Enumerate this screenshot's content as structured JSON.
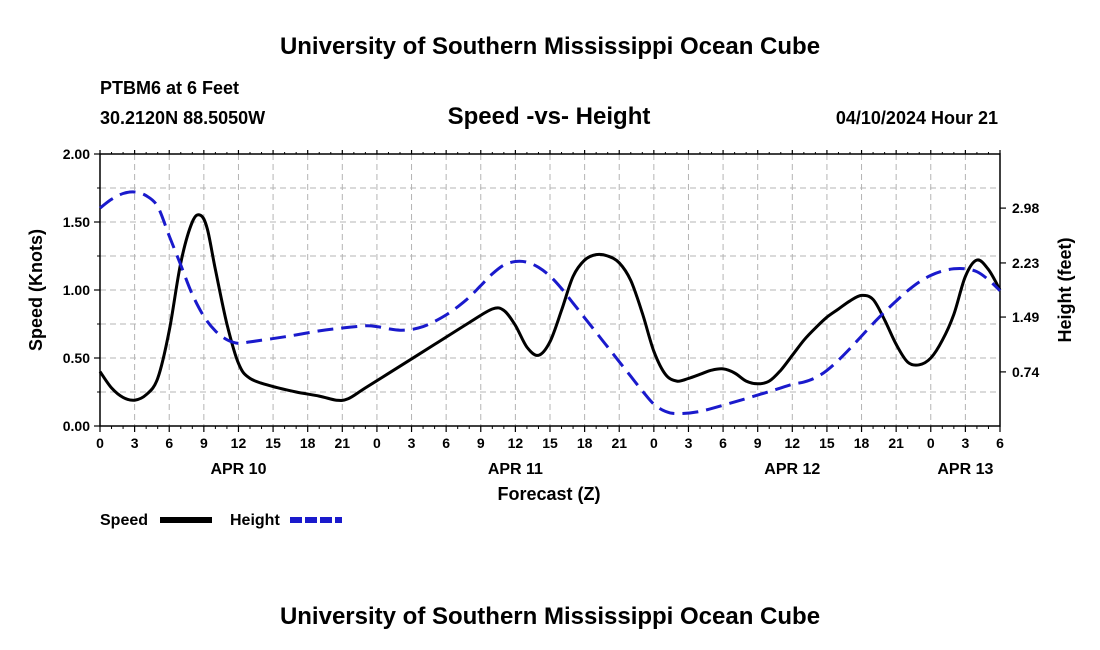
{
  "header": {
    "title": "University of Southern Mississippi Ocean Cube",
    "station": "PTBM6 at 6 Feet",
    "coords": "30.2120N  88.5050W",
    "chart_subtitle": "Speed -vs- Height",
    "datetime": "04/10/2024 Hour 21"
  },
  "footer": {
    "title": "University of Southern Mississippi Ocean Cube"
  },
  "legend": {
    "speed_label": "Speed",
    "height_label": "Height",
    "speed_color": "#000000",
    "height_color": "#1a1acc"
  },
  "chart_data": {
    "type": "line",
    "title": "Speed -vs- Height",
    "xlabel": "Forecast (Z)",
    "ylabel": "Speed (Knots)",
    "y2label": "Height (feet)",
    "x_unit": "hours since APR 10 00Z",
    "xlim": [
      0,
      78
    ],
    "ylim": [
      0,
      2.0
    ],
    "y2lim": [
      0,
      3.72
    ],
    "x_ticks": [
      {
        "x": 0,
        "label": "0"
      },
      {
        "x": 3,
        "label": "3"
      },
      {
        "x": 6,
        "label": "6"
      },
      {
        "x": 9,
        "label": "9"
      },
      {
        "x": 12,
        "label": "12"
      },
      {
        "x": 15,
        "label": "15"
      },
      {
        "x": 18,
        "label": "18"
      },
      {
        "x": 21,
        "label": "21"
      },
      {
        "x": 24,
        "label": "0"
      },
      {
        "x": 27,
        "label": "3"
      },
      {
        "x": 30,
        "label": "6"
      },
      {
        "x": 33,
        "label": "9"
      },
      {
        "x": 36,
        "label": "12"
      },
      {
        "x": 39,
        "label": "15"
      },
      {
        "x": 42,
        "label": "18"
      },
      {
        "x": 45,
        "label": "21"
      },
      {
        "x": 48,
        "label": "0"
      },
      {
        "x": 51,
        "label": "3"
      },
      {
        "x": 54,
        "label": "6"
      },
      {
        "x": 57,
        "label": "9"
      },
      {
        "x": 60,
        "label": "12"
      },
      {
        "x": 63,
        "label": "15"
      },
      {
        "x": 66,
        "label": "18"
      },
      {
        "x": 69,
        "label": "21"
      },
      {
        "x": 72,
        "label": "0"
      },
      {
        "x": 75,
        "label": "3"
      },
      {
        "x": 78,
        "label": "6"
      }
    ],
    "y_ticks": [
      {
        "y": 0.0,
        "label": "0.00"
      },
      {
        "y": 0.5,
        "label": "0.50"
      },
      {
        "y": 1.0,
        "label": "1.00"
      },
      {
        "y": 1.5,
        "label": "1.50"
      },
      {
        "y": 2.0,
        "label": "2.00"
      }
    ],
    "y2_ticks": [
      {
        "y": 0.74,
        "label": "0.74"
      },
      {
        "y": 1.49,
        "label": "1.49"
      },
      {
        "y": 2.23,
        "label": "2.23"
      },
      {
        "y": 2.98,
        "label": "2.98"
      }
    ],
    "day_labels": [
      {
        "x": 12,
        "label": "APR 10"
      },
      {
        "x": 36,
        "label": "APR 11"
      },
      {
        "x": 60,
        "label": "APR 12"
      },
      {
        "x": 75,
        "label": "APR 13"
      }
    ],
    "series": [
      {
        "name": "Speed",
        "axis": "left",
        "style": "solid",
        "color": "#000000",
        "x": [
          0,
          1,
          2,
          3,
          4,
          5,
          6,
          7,
          8,
          8.7,
          9.3,
          10,
          11,
          12,
          13,
          15,
          17,
          19,
          20.5,
          21.5,
          23,
          26,
          29,
          32,
          34,
          35,
          36,
          37,
          38,
          39,
          40,
          41,
          42,
          43,
          44,
          45,
          46,
          47,
          48,
          49,
          50,
          51,
          52,
          53,
          54,
          55,
          56,
          57,
          58,
          59,
          60,
          61,
          62,
          63,
          64,
          65,
          66,
          67,
          68,
          69,
          70,
          71,
          72,
          73,
          74,
          75,
          76,
          77,
          78
        ],
        "y": [
          0.4,
          0.28,
          0.21,
          0.19,
          0.23,
          0.35,
          0.7,
          1.2,
          1.5,
          1.55,
          1.45,
          1.15,
          0.75,
          0.46,
          0.35,
          0.29,
          0.25,
          0.22,
          0.19,
          0.2,
          0.28,
          0.44,
          0.6,
          0.76,
          0.86,
          0.85,
          0.74,
          0.58,
          0.52,
          0.62,
          0.85,
          1.1,
          1.22,
          1.26,
          1.25,
          1.2,
          1.07,
          0.83,
          0.55,
          0.38,
          0.33,
          0.35,
          0.38,
          0.41,
          0.42,
          0.39,
          0.33,
          0.31,
          0.33,
          0.41,
          0.52,
          0.63,
          0.72,
          0.8,
          0.86,
          0.92,
          0.96,
          0.93,
          0.78,
          0.6,
          0.47,
          0.45,
          0.5,
          0.63,
          0.82,
          1.1,
          1.22,
          1.15,
          1.0
        ]
      },
      {
        "name": "Height",
        "axis": "right",
        "style": "dashed",
        "color": "#1a1acc",
        "x": [
          0,
          1,
          2,
          3,
          4,
          5,
          6,
          7,
          8,
          9,
          10,
          11,
          12,
          13,
          16,
          19,
          21,
          23,
          24,
          25,
          26,
          27,
          28,
          29,
          30,
          31,
          32,
          33,
          34,
          35,
          36,
          37,
          38,
          39,
          40,
          41,
          42,
          43,
          44,
          45,
          46,
          47,
          48,
          49,
          50,
          52,
          55,
          58,
          60,
          61,
          62,
          63,
          64,
          65,
          66,
          67,
          68,
          69,
          70,
          71,
          72,
          73,
          74,
          75,
          76,
          77,
          78
        ],
        "y": [
          2.98,
          3.1,
          3.18,
          3.2,
          3.15,
          3.0,
          2.6,
          2.2,
          1.8,
          1.5,
          1.3,
          1.18,
          1.13,
          1.15,
          1.22,
          1.3,
          1.34,
          1.37,
          1.36,
          1.33,
          1.31,
          1.32,
          1.36,
          1.43,
          1.52,
          1.63,
          1.76,
          1.92,
          2.08,
          2.2,
          2.25,
          2.24,
          2.17,
          2.05,
          1.88,
          1.68,
          1.48,
          1.28,
          1.08,
          0.88,
          0.68,
          0.48,
          0.3,
          0.2,
          0.17,
          0.2,
          0.33,
          0.47,
          0.57,
          0.6,
          0.66,
          0.76,
          0.9,
          1.06,
          1.23,
          1.4,
          1.56,
          1.71,
          1.85,
          1.97,
          2.06,
          2.12,
          2.15,
          2.15,
          2.11,
          2.0,
          1.85
        ]
      }
    ]
  }
}
